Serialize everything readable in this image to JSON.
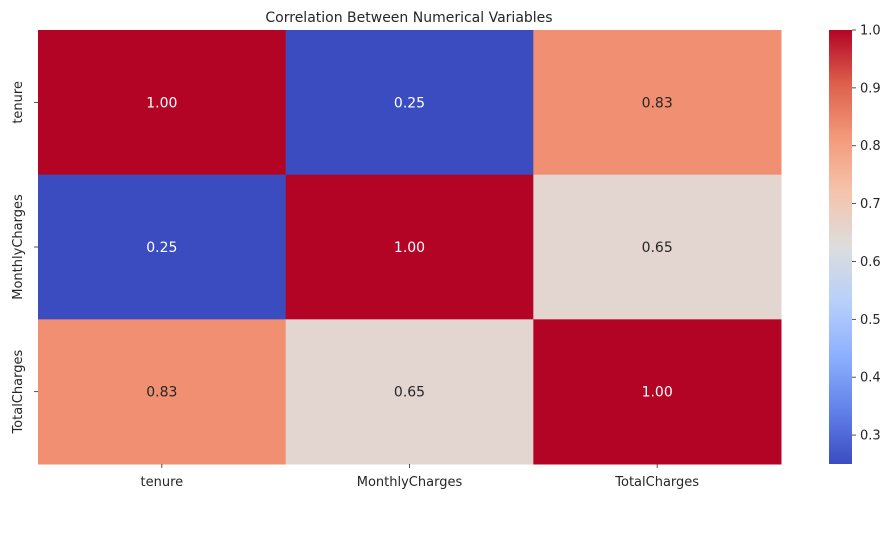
{
  "chart_data": {
    "type": "heatmap",
    "title": "Correlation Between Numerical Variables",
    "xlabel": "",
    "ylabel": "",
    "x_categories": [
      "tenure",
      "MonthlyCharges",
      "TotalCharges"
    ],
    "y_categories": [
      "tenure",
      "MonthlyCharges",
      "TotalCharges"
    ],
    "values": [
      [
        1.0,
        0.25,
        0.83
      ],
      [
        0.25,
        1.0,
        0.65
      ],
      [
        0.83,
        0.65,
        1.0
      ]
    ],
    "value_format": "0.00",
    "colormap": "coolwarm",
    "colorbar": {
      "vmin": 0.25,
      "vmax": 1.0,
      "ticks": [
        0.3,
        0.4,
        0.5,
        0.6,
        0.7,
        0.8,
        0.9,
        1.0
      ],
      "tick_labels": [
        "0.3",
        "0.4",
        "0.5",
        "0.6",
        "0.7",
        "0.8",
        "0.9",
        "1.0"
      ]
    },
    "grid": false
  }
}
